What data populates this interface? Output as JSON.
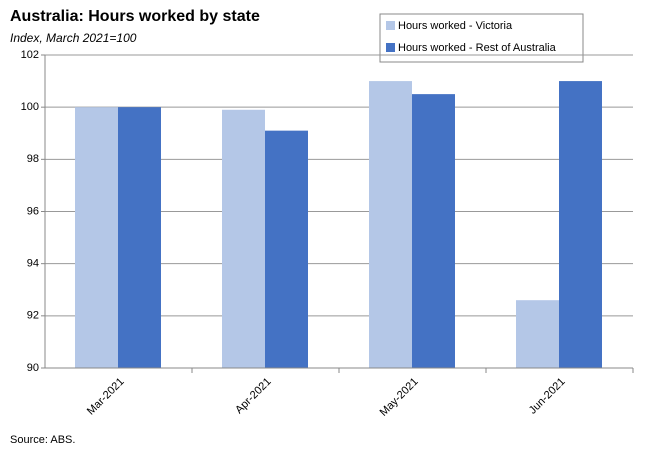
{
  "chart_data": {
    "type": "bar",
    "title": "Australia: Hours worked by state",
    "subtitle": "Index, March 2021=100",
    "source": "Source: ABS.",
    "categories": [
      "Mar-2021",
      "Apr-2021",
      "May-2021",
      "Jun-2021"
    ],
    "series": [
      {
        "name": "Hours worked - Victoria",
        "color": "#b4c7e7",
        "values": [
          100,
          99.9,
          101,
          92.6
        ]
      },
      {
        "name": "Hours worked - Rest of Australia",
        "color": "#4472c4",
        "values": [
          100,
          99.1,
          100.5,
          101
        ]
      }
    ],
    "ylim": [
      90,
      102
    ],
    "yticks": [
      90,
      92,
      94,
      96,
      98,
      100,
      102
    ],
    "grid": true
  }
}
